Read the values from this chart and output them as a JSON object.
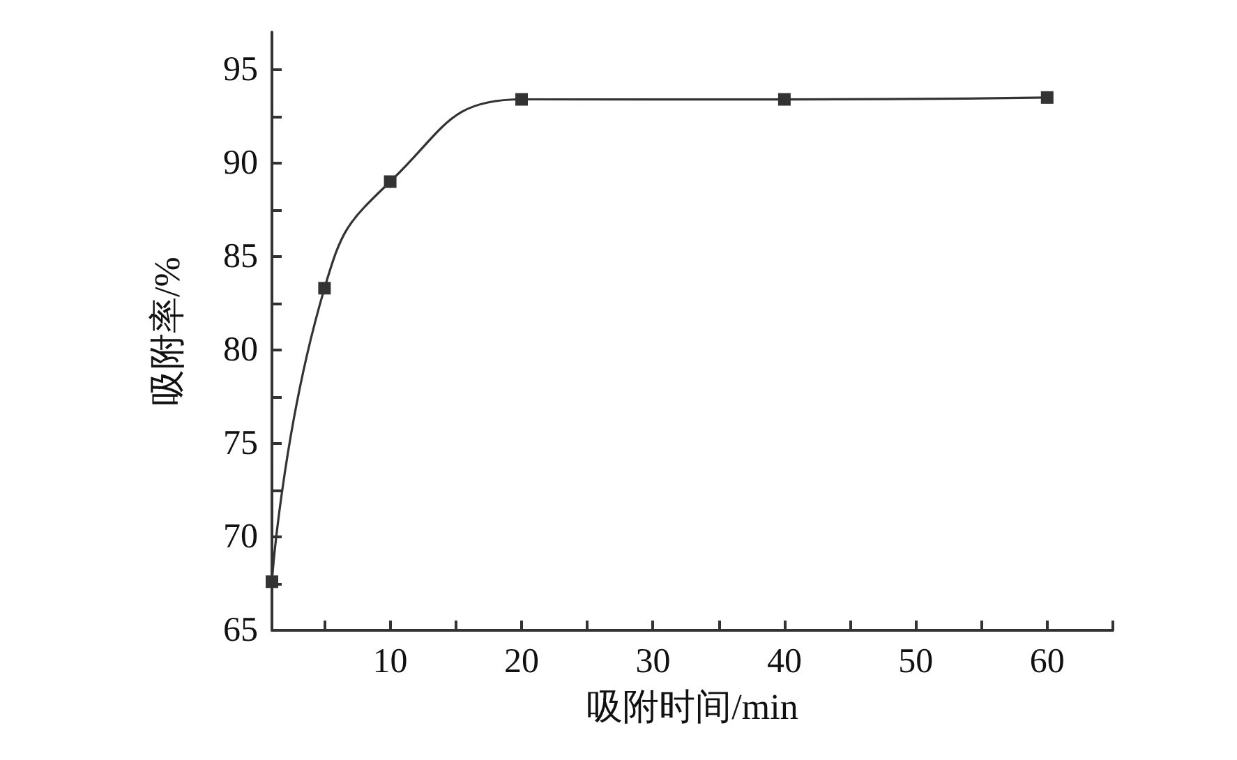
{
  "chart_data": {
    "type": "line",
    "xlabel": "吸附时间/min",
    "ylabel": "吸附率/%",
    "x": [
      1,
      5,
      10,
      20,
      40,
      60
    ],
    "series": [
      {
        "color": "#333333",
        "values": [
          67.6,
          83.3,
          89.0,
          93.4,
          93.4,
          93.5
        ]
      }
    ],
    "xlim": [
      1,
      65
    ],
    "xticks": [
      {
        "value": 5,
        "label": null
      },
      10,
      {
        "value": 15,
        "label": null
      },
      20,
      {
        "value": 25,
        "label": null
      },
      30,
      {
        "value": 35,
        "label": null
      },
      40,
      {
        "value": 45,
        "label": null
      },
      50,
      {
        "value": 55,
        "label": null
      },
      60,
      {
        "value": 65,
        "label": null
      }
    ],
    "ylim": [
      65,
      97
    ],
    "yticks": [
      65,
      {
        "value": 67.5,
        "label": null
      },
      70,
      {
        "value": 72.5,
        "label": null
      },
      75,
      {
        "value": 77.5,
        "label": null
      },
      80,
      {
        "value": 82.5,
        "label": null
      },
      85,
      {
        "value": 87.5,
        "label": null
      },
      90,
      {
        "value": 92.5,
        "label": null
      },
      95
    ],
    "marker": "square",
    "grid": false
  }
}
